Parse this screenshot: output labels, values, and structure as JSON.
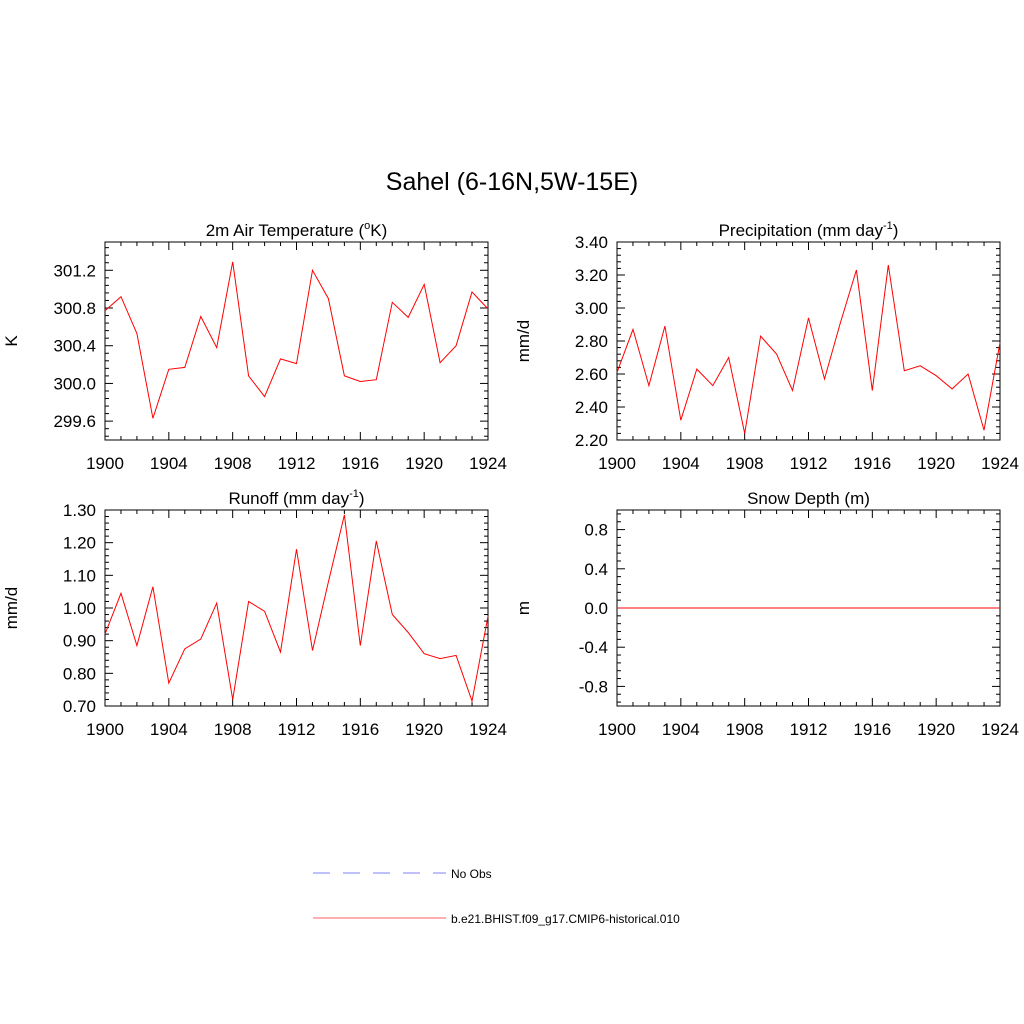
{
  "title": "Sahel (6-16N,5W-15E)",
  "colors": {
    "model_line": "#ff0000",
    "obs_line": "#9a9aff",
    "axis": "#000000"
  },
  "legend": [
    {
      "label": "No Obs",
      "style": "dashed",
      "color": "#9a9aff"
    },
    {
      "label": "b.e21.BHIST.f09_g17.CMIP6-historical.010",
      "style": "solid",
      "color": "#ff7f7f"
    }
  ],
  "chart_data": [
    {
      "type": "line",
      "title": "2m Air Temperature (",
      "title_sup": "o",
      "title_post": "K)",
      "ylabel": "K",
      "xlim": [
        1900,
        1924
      ],
      "ylim": [
        299.4,
        301.5
      ],
      "xticks": [
        "1900",
        "1904",
        "1908",
        "1912",
        "1916",
        "1920",
        "1924"
      ],
      "yticks": [
        "299.6",
        "300.0",
        "300.4",
        "300.8",
        "301.2"
      ],
      "x": [
        1900,
        1901,
        1902,
        1903,
        1904,
        1905,
        1906,
        1907,
        1908,
        1909,
        1910,
        1911,
        1912,
        1913,
        1914,
        1915,
        1916,
        1917,
        1918,
        1919,
        1920,
        1921,
        1922,
        1923,
        1924
      ],
      "series": [
        {
          "values": [
            300.77,
            300.92,
            300.53,
            299.63,
            300.15,
            300.17,
            300.71,
            300.38,
            301.29,
            300.08,
            299.86,
            300.26,
            300.21,
            301.2,
            300.9,
            300.08,
            300.02,
            300.04,
            300.86,
            300.7,
            301.05,
            300.22,
            300.4,
            300.97,
            300.79
          ]
        }
      ]
    },
    {
      "type": "line",
      "title": "Precipitation (mm day",
      "title_sup": "-1",
      "title_post": ")",
      "ylabel": "mm/d",
      "xlim": [
        1900,
        1924
      ],
      "ylim": [
        2.2,
        3.4
      ],
      "xticks": [
        "1900",
        "1904",
        "1908",
        "1912",
        "1916",
        "1920",
        "1924"
      ],
      "yticks": [
        "2.20",
        "2.40",
        "2.60",
        "2.80",
        "3.00",
        "3.20",
        "3.40"
      ],
      "x": [
        1900,
        1901,
        1902,
        1903,
        1904,
        1905,
        1906,
        1907,
        1908,
        1909,
        1910,
        1911,
        1912,
        1913,
        1914,
        1915,
        1916,
        1917,
        1918,
        1919,
        1920,
        1921,
        1922,
        1923,
        1924
      ],
      "series": [
        {
          "values": [
            2.61,
            2.87,
            2.53,
            2.89,
            2.32,
            2.63,
            2.53,
            2.7,
            2.24,
            2.83,
            2.72,
            2.5,
            2.94,
            2.57,
            2.91,
            3.23,
            2.5,
            3.26,
            2.62,
            2.65,
            2.59,
            2.51,
            2.6,
            2.26,
            2.79
          ]
        }
      ]
    },
    {
      "type": "line",
      "title": "Runoff (mm day",
      "title_sup": "-1",
      "title_post": ")",
      "ylabel": "mm/d",
      "xlim": [
        1900,
        1924
      ],
      "ylim": [
        0.7,
        1.3
      ],
      "xticks": [
        "1900",
        "1904",
        "1908",
        "1912",
        "1916",
        "1920",
        "1924"
      ],
      "yticks": [
        "0.70",
        "0.80",
        "0.90",
        "1.00",
        "1.10",
        "1.20",
        "1.30"
      ],
      "x": [
        1900,
        1901,
        1902,
        1903,
        1904,
        1905,
        1906,
        1907,
        1908,
        1909,
        1910,
        1911,
        1912,
        1913,
        1914,
        1915,
        1916,
        1917,
        1918,
        1919,
        1920,
        1921,
        1922,
        1923,
        1924
      ],
      "series": [
        {
          "values": [
            0.92,
            1.045,
            0.885,
            1.065,
            0.77,
            0.875,
            0.905,
            1.015,
            0.72,
            1.02,
            0.99,
            0.865,
            1.18,
            0.87,
            1.08,
            1.285,
            0.885,
            1.205,
            0.98,
            0.925,
            0.86,
            0.845,
            0.855,
            0.715,
            0.975
          ]
        }
      ]
    },
    {
      "type": "line",
      "title": "Snow Depth (m)",
      "title_sup": "",
      "title_post": "",
      "ylabel": "m",
      "xlim": [
        1900,
        1924
      ],
      "ylim": [
        -1.0,
        1.0
      ],
      "xticks": [
        "1900",
        "1904",
        "1908",
        "1912",
        "1916",
        "1920",
        "1924"
      ],
      "yticks": [
        "-0.8",
        "-0.4",
        "0.0",
        "0.4",
        "0.8"
      ],
      "x": [
        1900,
        1901,
        1902,
        1903,
        1904,
        1905,
        1906,
        1907,
        1908,
        1909,
        1910,
        1911,
        1912,
        1913,
        1914,
        1915,
        1916,
        1917,
        1918,
        1919,
        1920,
        1921,
        1922,
        1923,
        1924
      ],
      "series": [
        {
          "values": [
            0,
            0,
            0,
            0,
            0,
            0,
            0,
            0,
            0,
            0,
            0,
            0,
            0,
            0,
            0,
            0,
            0,
            0,
            0,
            0,
            0,
            0,
            0,
            0,
            0
          ]
        }
      ]
    }
  ]
}
